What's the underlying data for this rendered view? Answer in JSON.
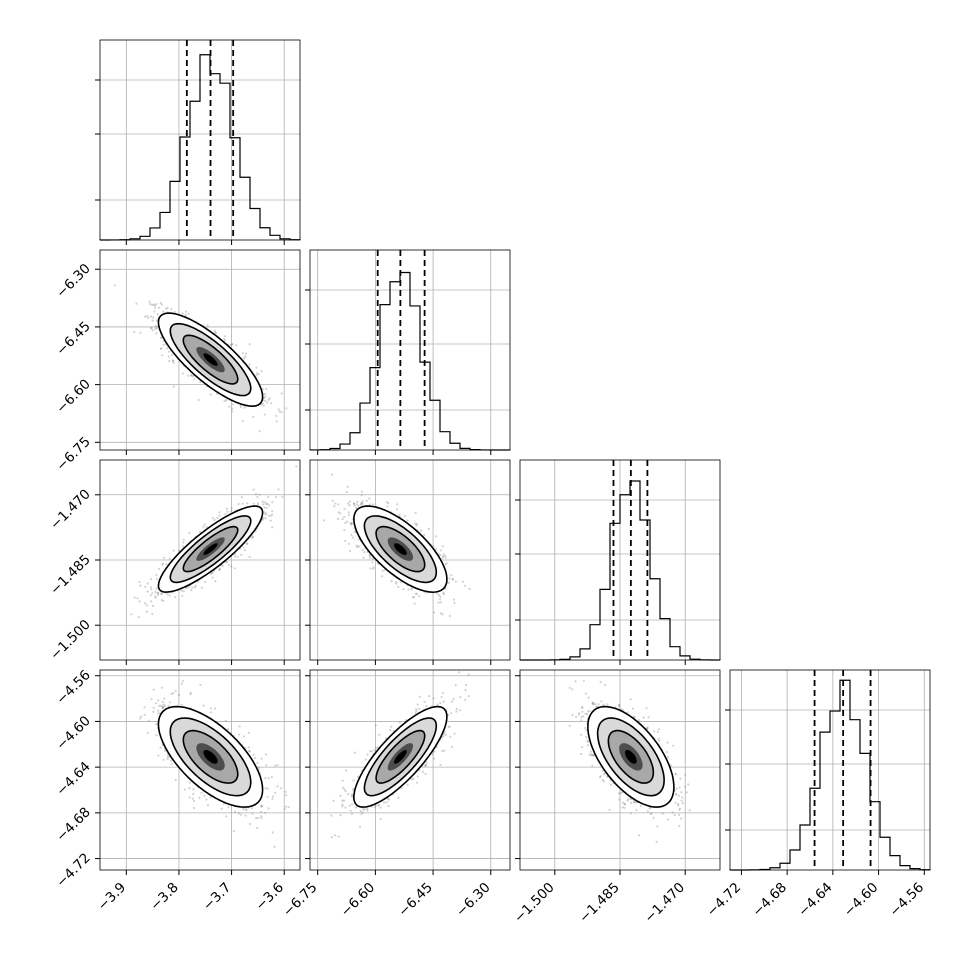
{
  "chart_data": {
    "type": "corner",
    "title": "",
    "dimensions": 4,
    "grid": true,
    "params": [
      {
        "index": 0,
        "range": [
          -3.95,
          -3.57
        ],
        "ticks": [
          -3.9,
          -3.8,
          -3.7,
          -3.6
        ],
        "tick_labels": [
          "−3.9",
          "−3.8",
          "−3.7",
          "−3.6"
        ],
        "mean": -3.74,
        "sd": 0.045,
        "quantiles": [
          -3.785,
          -3.74,
          -3.697
        ]
      },
      {
        "index": 1,
        "range": [
          -6.77,
          -6.25
        ],
        "ticks": [
          -6.75,
          -6.6,
          -6.45,
          -6.3
        ],
        "tick_labels": [
          "−6.75",
          "−6.60",
          "−6.45",
          "−6.30"
        ],
        "mean": -6.535,
        "sd": 0.055,
        "quantiles": [
          -6.594,
          -6.535,
          -6.472
        ]
      },
      {
        "index": 2,
        "range": [
          -1.508,
          -1.462
        ],
        "ticks": [
          -1.5,
          -1.485,
          -1.47
        ],
        "tick_labels": [
          "−1.500",
          "−1.485",
          "−1.470"
        ],
        "mean": -1.4825,
        "sd": 0.0045,
        "quantiles": [
          -1.4865,
          -1.4825,
          -1.4787
        ]
      },
      {
        "index": 3,
        "range": [
          -4.73,
          -4.555
        ],
        "ticks": [
          -4.72,
          -4.68,
          -4.64,
          -4.6,
          -4.56
        ],
        "tick_labels": [
          "−4.72",
          "−4.68",
          "−4.64",
          "−4.60",
          "−4.56"
        ],
        "mean": -4.631,
        "sd": 0.02,
        "quantiles": [
          -4.656,
          -4.631,
          -4.607
        ]
      }
    ],
    "correlations": [
      [
        1,
        -0.8,
        0.85,
        -0.65
      ],
      [
        -0.8,
        1,
        -0.7,
        0.8
      ],
      [
        0.85,
        -0.7,
        1,
        -0.6
      ],
      [
        -0.65,
        0.8,
        -0.6,
        1
      ]
    ],
    "colors": {
      "hist": "#000000",
      "points": "#7f7f7f",
      "contour": "#000000",
      "grid": "#b0b0b0",
      "background": "#ffffff"
    }
  }
}
